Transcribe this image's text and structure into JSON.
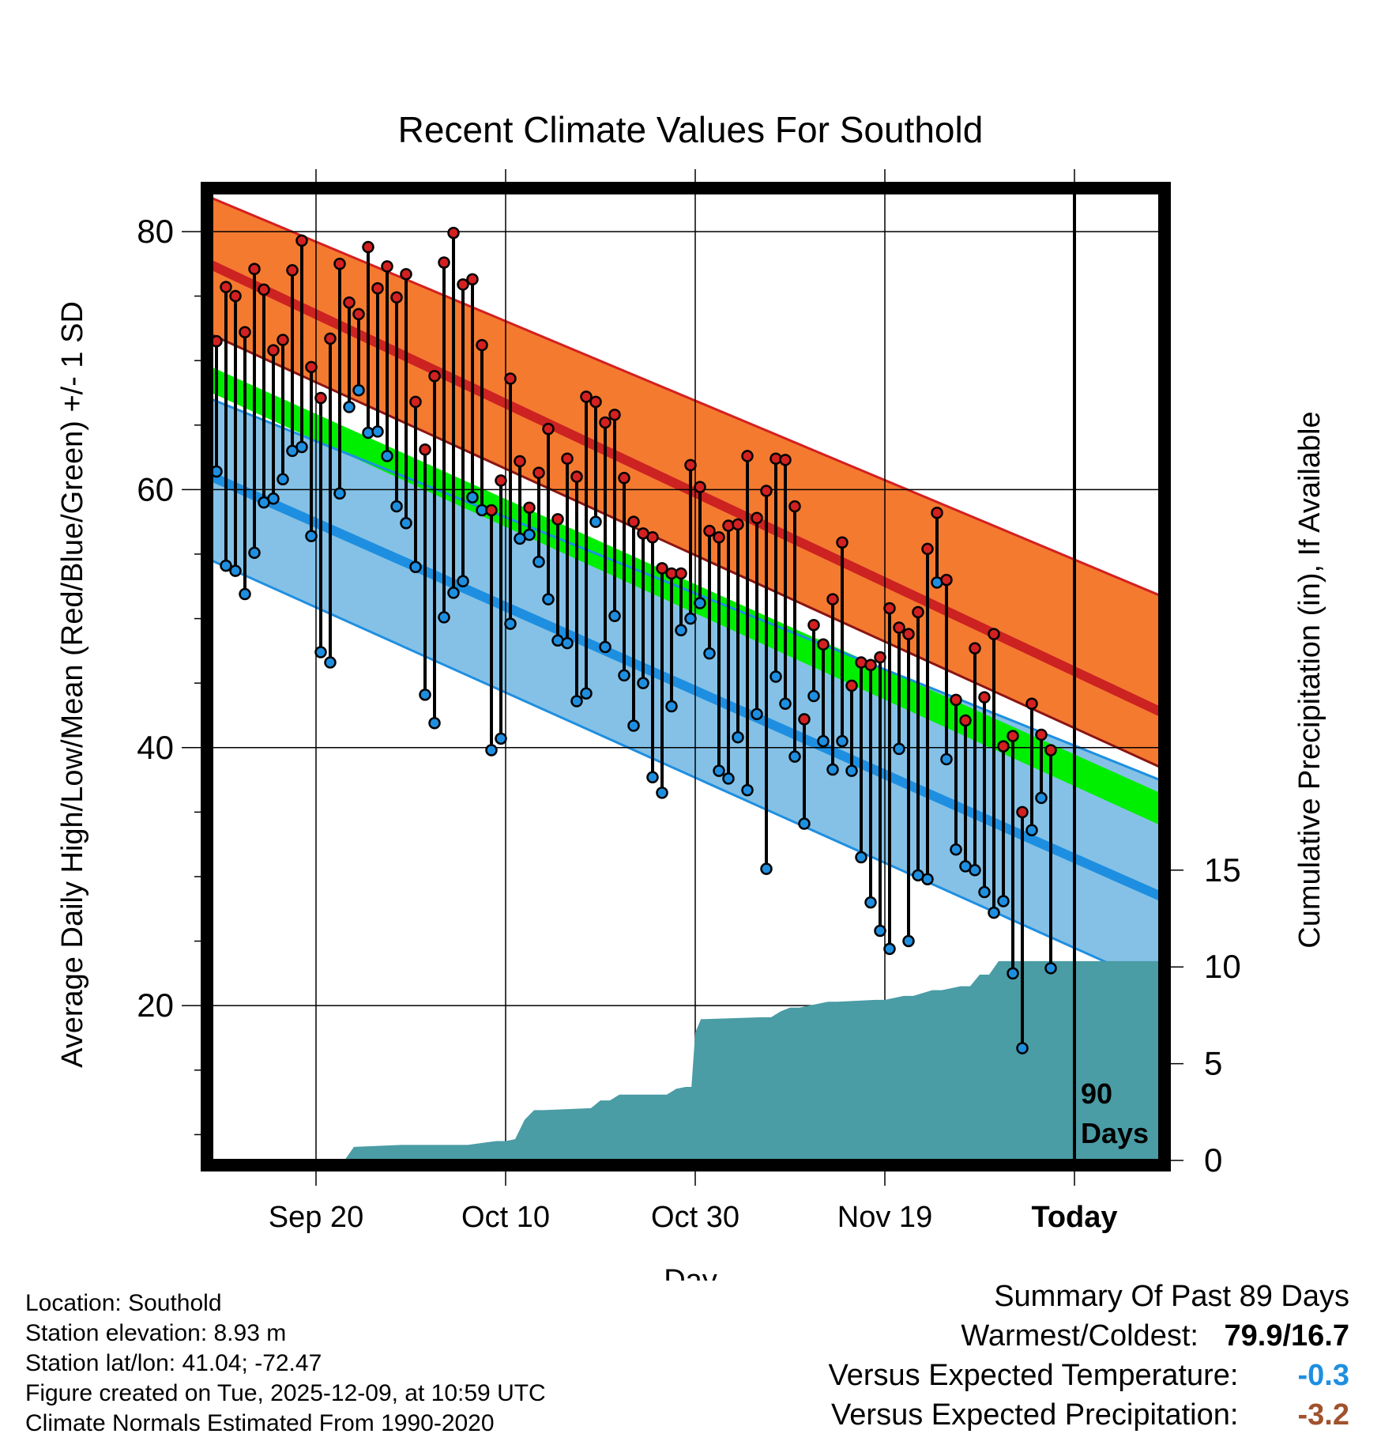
{
  "chart_data": {
    "type": "line",
    "title": "Recent Climate Values For Southold",
    "xlabel": "Day",
    "ylabel": "Average Daily High/Low/Mean (Red/Blue/Green) +/- 1 SD",
    "y2label": "Cumulative Precipitation (in), If Available",
    "x_tick_labels": [
      "Sep 20",
      "Oct 10",
      "Oct 30",
      "Nov 19",
      "Today"
    ],
    "x_tick_days": [
      11,
      31,
      51,
      71,
      91
    ],
    "xlim_days": [
      0,
      100
    ],
    "ylim": [
      8,
      83
    ],
    "y_ticks": [
      20,
      40,
      60,
      80
    ],
    "y2lim": [
      0,
      50
    ],
    "y2_ticks": [
      0,
      5,
      10,
      15
    ],
    "period_label": "90 Days",
    "normals": {
      "days": [
        0,
        100
      ],
      "high_upper": [
        82.6,
        51.8
      ],
      "high_mean": [
        77.4,
        42.8
      ],
      "high_lower": [
        72.0,
        38.5
      ],
      "mean_upper": [
        69.5,
        36.5
      ],
      "mean_lower": [
        67.5,
        34.0
      ],
      "low_upper": [
        67.0,
        37.5
      ],
      "low_mean": [
        61.0,
        28.5
      ],
      "low_lower": [
        54.5,
        21.5
      ]
    },
    "series": [
      {
        "name": "Daily High",
        "color": "#d42020",
        "start_day": 0,
        "values": [
          71.5,
          75.7,
          75.0,
          72.2,
          77.1,
          75.5,
          70.8,
          71.6,
          77.0,
          79.3,
          69.5,
          67.1,
          71.7,
          77.5,
          74.5,
          73.6,
          78.8,
          75.6,
          77.3,
          74.9,
          76.7,
          66.8,
          63.1,
          68.8,
          77.6,
          79.9,
          75.9,
          76.3,
          71.2,
          58.4,
          60.7,
          68.6,
          62.2,
          58.6,
          61.3,
          64.7,
          57.7,
          62.4,
          61.0,
          67.2,
          66.8,
          65.2,
          65.8,
          60.9,
          57.5,
          56.6,
          56.3,
          53.9,
          53.5,
          53.5,
          61.9,
          60.2,
          56.8,
          56.3,
          57.2,
          57.3,
          62.6,
          57.8,
          59.9,
          62.4,
          62.3,
          58.7,
          42.2,
          49.5,
          48.0,
          51.5,
          55.9,
          44.8,
          46.6,
          46.4,
          47.0,
          50.8,
          49.3,
          48.8,
          50.5,
          55.4,
          58.2,
          53.0,
          43.7,
          42.1,
          47.7,
          43.9,
          48.8,
          40.1,
          40.9,
          35.0,
          43.4,
          41.0,
          39.8
        ],
        "flags": [
          "",
          "",
          "",
          "",
          "",
          "",
          "",
          "",
          "",
          "",
          "",
          "",
          "",
          "",
          "",
          "",
          "",
          "",
          "",
          "",
          "",
          "",
          "",
          "",
          "",
          "",
          "",
          "",
          "",
          "",
          "",
          "",
          "",
          "",
          "",
          "",
          "",
          "",
          "",
          "",
          "",
          "",
          "",
          "",
          "",
          "",
          "",
          "",
          "",
          "",
          "",
          "",
          "",
          "",
          "",
          "",
          "",
          "",
          "",
          "",
          "",
          "",
          "",
          "",
          "",
          "",
          "",
          "",
          "",
          "",
          "",
          "",
          "",
          "",
          "",
          "",
          "",
          "",
          "",
          "",
          "",
          "",
          "",
          "",
          "",
          "",
          "",
          "",
          ""
        ]
      },
      {
        "name": "Daily Low",
        "color": "#1e8fe0",
        "start_day": 0,
        "values": [
          61.4,
          54.1,
          53.7,
          51.9,
          55.1,
          59.0,
          59.3,
          60.8,
          63.0,
          63.3,
          56.4,
          47.4,
          46.6,
          59.7,
          66.4,
          67.7,
          64.4,
          64.5,
          62.6,
          58.7,
          57.4,
          54.0,
          44.1,
          41.9,
          50.1,
          52.0,
          52.9,
          59.4,
          58.4,
          39.8,
          40.7,
          49.6,
          56.2,
          56.5,
          54.4,
          51.5,
          48.3,
          48.1,
          43.6,
          44.2,
          57.5,
          47.8,
          50.2,
          45.6,
          41.7,
          45.0,
          37.7,
          36.5,
          43.2,
          49.1,
          50.0,
          51.2,
          47.3,
          38.2,
          37.6,
          40.8,
          36.7,
          42.6,
          30.6,
          45.5,
          43.4,
          39.3,
          34.1,
          44.0,
          40.5,
          38.3,
          40.5,
          38.2,
          31.5,
          28.0,
          25.8,
          24.4,
          39.9,
          25.0,
          30.1,
          29.8,
          52.8,
          39.1,
          32.1,
          30.8,
          30.5,
          28.8,
          27.2,
          28.1,
          22.5,
          16.7,
          33.6,
          36.1,
          22.9
        ]
      }
    ],
    "precip_cumulative": {
      "days": [
        0,
        14,
        15,
        20,
        27,
        30,
        31,
        32,
        33,
        34,
        35,
        40,
        41,
        42,
        43,
        48,
        49,
        50,
        50.6,
        51,
        51.6,
        52,
        58,
        59,
        60,
        61,
        62,
        65,
        66,
        70,
        71,
        73,
        74,
        76,
        77,
        79,
        80,
        81,
        82,
        83,
        100
      ],
      "values": [
        0,
        0,
        0.7,
        0.8,
        0.8,
        1.0,
        1.0,
        1.1,
        2.1,
        2.6,
        2.6,
        2.7,
        3.1,
        3.1,
        3.4,
        3.4,
        3.7,
        3.8,
        3.8,
        6.6,
        7.3,
        7.3,
        7.4,
        7.4,
        7.7,
        7.9,
        7.9,
        8.2,
        8.2,
        8.3,
        8.3,
        8.5,
        8.5,
        8.8,
        8.8,
        9.0,
        9.0,
        9.6,
        9.6,
        10.3,
        10.3
      ]
    }
  },
  "footer": {
    "location": "Location: Southold",
    "elevation": "Station elevation: 8.93 m",
    "latlon": "Station lat/lon: 41.04; -72.47",
    "created": "Figure created on Tue, 2025-12-09, at 10:59 UTC",
    "normals": "Climate Normals Estimated From 1990-2020"
  },
  "summary": {
    "heading": "Summary Of Past 89 Days",
    "warmest_label": "Warmest/Coldest:",
    "warmest_value": "79.9/16.7",
    "temp_label": "Versus Expected Temperature:",
    "temp_value": "-0.3",
    "temp_color": "#1e8fe0",
    "precip_label": "Versus Expected Precipitation:",
    "precip_value": "-3.2",
    "precip_color": "#a0522d"
  }
}
